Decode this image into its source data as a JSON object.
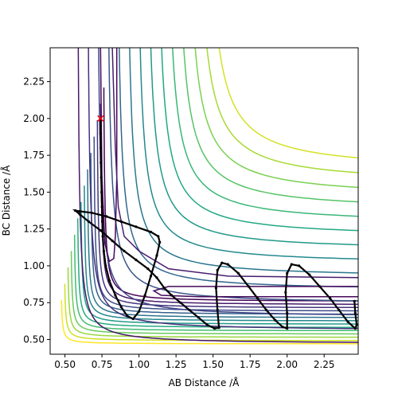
{
  "chart_data": {
    "type": "contour",
    "xlabel": "AB Distance /Å",
    "ylabel": "BC Distance /Å",
    "xlim": [
      0.4,
      2.48
    ],
    "ylim": [
      0.4,
      2.48
    ],
    "xticks": [
      "0.50",
      "0.75",
      "1.00",
      "1.25",
      "1.50",
      "1.75",
      "2.00",
      "2.25"
    ],
    "yticks": [
      "0.50",
      "0.75",
      "1.00",
      "1.25",
      "1.50",
      "1.75",
      "2.00",
      "2.25"
    ],
    "xtick_values": [
      0.5,
      0.75,
      1.0,
      1.25,
      1.5,
      1.75,
      2.0,
      2.25
    ],
    "ytick_values": [
      0.5,
      0.75,
      1.0,
      1.25,
      1.5,
      1.75,
      2.0,
      2.25
    ],
    "grid": false,
    "contour_colormap": "viridis",
    "start_marker": {
      "x": 0.74,
      "y": 2.0,
      "symbol": "x",
      "color": "#ff0000"
    },
    "trajectory": [
      [
        0.74,
        2.0
      ],
      [
        0.741,
        1.9
      ],
      [
        0.742,
        1.8
      ],
      [
        0.743,
        1.7
      ],
      [
        0.745,
        1.6
      ],
      [
        0.747,
        1.5
      ],
      [
        0.75,
        1.4
      ],
      [
        0.752,
        1.3
      ],
      [
        0.755,
        1.2
      ],
      [
        0.762,
        1.1
      ],
      [
        0.775,
        1.0
      ],
      [
        0.8,
        0.9
      ],
      [
        0.84,
        0.8
      ],
      [
        0.88,
        0.72
      ],
      [
        0.92,
        0.66
      ],
      [
        0.96,
        0.64
      ],
      [
        1.0,
        0.69
      ],
      [
        1.04,
        0.8
      ],
      [
        1.08,
        0.93
      ],
      [
        1.12,
        1.07
      ],
      [
        1.14,
        1.16
      ],
      [
        1.13,
        1.2
      ],
      [
        1.08,
        1.23
      ],
      [
        0.98,
        1.265
      ],
      [
        0.88,
        1.3
      ],
      [
        0.78,
        1.335
      ],
      [
        0.68,
        1.36
      ],
      [
        0.6,
        1.37
      ],
      [
        0.57,
        1.375
      ],
      [
        0.6,
        1.35
      ],
      [
        0.66,
        1.3
      ],
      [
        0.74,
        1.24
      ],
      [
        0.82,
        1.17
      ],
      [
        0.9,
        1.1
      ],
      [
        0.98,
        1.04
      ],
      [
        1.06,
        0.98
      ],
      [
        1.12,
        0.92
      ],
      [
        1.17,
        0.85
      ],
      [
        1.22,
        0.8
      ],
      [
        1.28,
        0.75
      ],
      [
        1.34,
        0.7
      ],
      [
        1.4,
        0.65
      ],
      [
        1.46,
        0.6
      ],
      [
        1.51,
        0.575
      ],
      [
        1.54,
        0.58
      ],
      [
        1.53,
        0.7
      ],
      [
        1.52,
        0.85
      ],
      [
        1.53,
        0.97
      ],
      [
        1.56,
        1.02
      ],
      [
        1.6,
        1.01
      ],
      [
        1.67,
        0.95
      ],
      [
        1.74,
        0.86
      ],
      [
        1.8,
        0.78
      ],
      [
        1.86,
        0.7
      ],
      [
        1.92,
        0.63
      ],
      [
        1.97,
        0.585
      ],
      [
        2.0,
        0.575
      ],
      [
        2.0,
        0.68
      ],
      [
        1.99,
        0.82
      ],
      [
        2.0,
        0.95
      ],
      [
        2.03,
        1.01
      ],
      [
        2.08,
        1.0
      ],
      [
        2.15,
        0.94
      ],
      [
        2.22,
        0.86
      ],
      [
        2.29,
        0.78
      ],
      [
        2.35,
        0.7
      ],
      [
        2.41,
        0.62
      ],
      [
        2.46,
        0.575
      ],
      [
        2.47,
        0.6
      ],
      [
        2.46,
        0.68
      ],
      [
        2.455,
        0.76
      ]
    ]
  }
}
